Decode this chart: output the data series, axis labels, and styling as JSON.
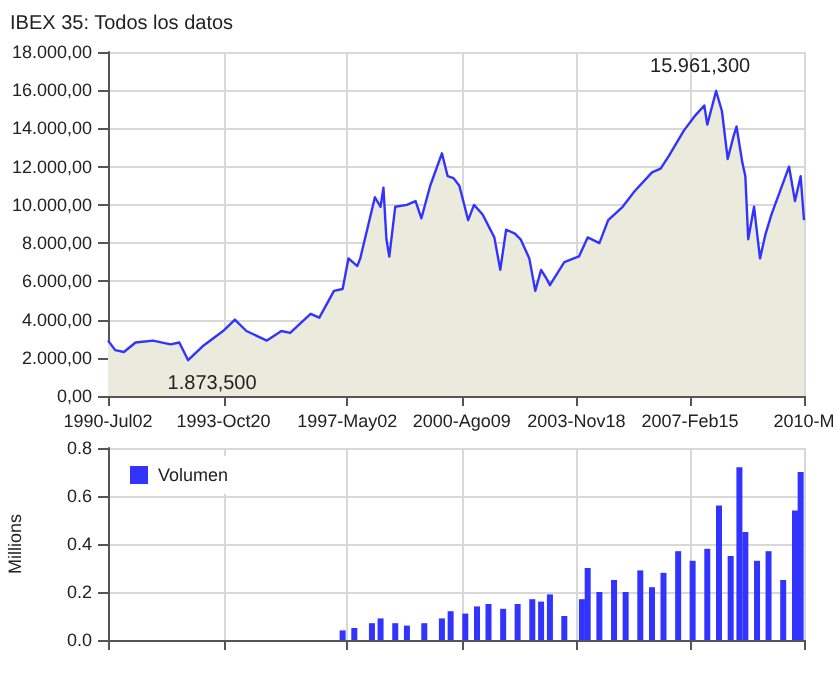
{
  "chart_data": [
    {
      "type": "area",
      "title": "IBEX 35: Todos los datos",
      "legend": false,
      "grid": true,
      "x": [
        "1990-07-02",
        "1990-09",
        "1990-12",
        "1991-04",
        "1991-10",
        "1992-04",
        "1992-07",
        "1992-10",
        "1993-03",
        "1993-10",
        "1994-02",
        "1994-06",
        "1995-01",
        "1995-06",
        "1995-09",
        "1996-04",
        "1996-07",
        "1996-12",
        "1997-03",
        "1997-05",
        "1997-08",
        "1997-09",
        "1998-02",
        "1998-04",
        "1998-05",
        "1998-06",
        "1998-07",
        "1998-09",
        "1999-01",
        "1999-04",
        "1999-06",
        "1999-09",
        "2000-01",
        "2000-03",
        "2000-05",
        "2000-07",
        "2000-10",
        "2000-12",
        "2001-03",
        "2001-07",
        "2001-09",
        "2001-11",
        "2002-02",
        "2002-04",
        "2002-07",
        "2002-09",
        "2002-11",
        "2003-01",
        "2003-02",
        "2003-07",
        "2003-12",
        "2004-03",
        "2004-07",
        "2004-10",
        "2005-03",
        "2005-07",
        "2006-01",
        "2006-04",
        "2006-07",
        "2006-12",
        "2007-04",
        "2007-07",
        "2007-08",
        "2007-11",
        "2008-01",
        "2008-03",
        "2008-05",
        "2008-06",
        "2008-08",
        "2008-09",
        "2008-10",
        "2008-12",
        "2009-02",
        "2009-04",
        "2009-06",
        "2009-12",
        "2010-02",
        "2010-04",
        "2010-05-20"
      ],
      "series": [
        {
          "color": "#3333ff",
          "values": [
            2900,
            2400,
            2300,
            2800,
            2900,
            2700,
            2800,
            1873.5,
            2600,
            3400,
            4000,
            3400,
            2900,
            3400,
            3300,
            4300,
            4100,
            5500,
            5600,
            7200,
            6800,
            7200,
            10400,
            9900,
            10900,
            8200,
            7300,
            9900,
            10000,
            10200,
            9300,
            11000,
            12700,
            11500,
            11400,
            11000,
            9200,
            10000,
            9500,
            8300,
            6600,
            8700,
            8500,
            8200,
            7200,
            5500,
            6600,
            6100,
            5800,
            7000,
            7300,
            8300,
            8000,
            9200,
            9900,
            10700,
            11700,
            11900,
            12600,
            13900,
            14700,
            15200,
            14200,
            15961.3,
            14900,
            12400,
            13600,
            14100,
            12200,
            11500,
            8200,
            9900,
            7200,
            8500,
            9500,
            12000,
            10200,
            11500,
            9200
          ]
        }
      ],
      "xlim": [
        "1990-07-02",
        "2010-05-20"
      ],
      "xticks": [
        {
          "value": "1990-07-02",
          "label": "1990-Jul02"
        },
        {
          "value": "1993-10-20",
          "label": "1993-Oct20"
        },
        {
          "value": "1997-05-02",
          "label": "1997-May02"
        },
        {
          "value": "2000-08-09",
          "label": "2000-Ago09"
        },
        {
          "value": "2003-11-18",
          "label": "2003-Nov18"
        },
        {
          "value": "2007-02-15",
          "label": "2007-Feb15"
        },
        {
          "value": "2010-05-20",
          "label": "2010-M"
        }
      ],
      "ylim": [
        0,
        18000
      ],
      "yticks": [
        {
          "value": 0,
          "label": "0,00"
        },
        {
          "value": 2000,
          "label": "2.000,00"
        },
        {
          "value": 4000,
          "label": "4.000,00"
        },
        {
          "value": 6000,
          "label": "6.000,00"
        },
        {
          "value": 8000,
          "label": "8.000,00"
        },
        {
          "value": 10000,
          "label": "10.000,00"
        },
        {
          "value": 12000,
          "label": "12.000,00"
        },
        {
          "value": 14000,
          "label": "14.000,00"
        },
        {
          "value": 16000,
          "label": "16.000,00"
        },
        {
          "value": 18000,
          "label": "18.000,00"
        }
      ],
      "annotations": [
        {
          "text": "1.873,500",
          "x": "1992-10",
          "y": 1873.5
        },
        {
          "text": "15.961,300",
          "x": "2007-11",
          "y": 15961.3
        }
      ]
    },
    {
      "type": "bar",
      "ylabel": "Millions",
      "legend": "top left",
      "grid": true,
      "tick_labels": "y",
      "x": [
        "1997-03",
        "1997-07",
        "1998-01",
        "1998-04",
        "1998-09",
        "1999-01",
        "1999-07",
        "2000-01",
        "2000-04",
        "2000-09",
        "2001-01",
        "2001-05",
        "2001-10",
        "2002-03",
        "2002-08",
        "2002-11",
        "2003-02",
        "2003-07",
        "2004-01",
        "2004-03",
        "2004-07",
        "2004-12",
        "2005-04",
        "2005-09",
        "2006-01",
        "2006-05",
        "2006-10",
        "2007-03",
        "2007-08",
        "2007-12",
        "2008-04",
        "2008-07",
        "2008-09",
        "2009-01",
        "2009-05",
        "2009-10",
        "2010-02",
        "2010-04"
      ],
      "series": [
        {
          "name": "Volumen",
          "color": "#3333ff",
          "values": [
            0.04,
            0.05,
            0.07,
            0.09,
            0.07,
            0.06,
            0.07,
            0.09,
            0.12,
            0.11,
            0.14,
            0.15,
            0.13,
            0.15,
            0.17,
            0.16,
            0.19,
            0.1,
            0.17,
            0.3,
            0.2,
            0.25,
            0.2,
            0.29,
            0.22,
            0.28,
            0.37,
            0.33,
            0.38,
            0.56,
            0.35,
            0.72,
            0.45,
            0.33,
            0.37,
            0.25,
            0.54,
            0.7
          ]
        }
      ],
      "xlim": [
        "1990-07-02",
        "2010-05-20"
      ],
      "xticks": [
        {
          "value": "1990-07-02",
          "label": null
        },
        {
          "value": "1993-10-20",
          "label": null
        },
        {
          "value": "1997-05-02",
          "label": null
        },
        {
          "value": "2000-08-09",
          "label": null
        },
        {
          "value": "2003-11-18",
          "label": null
        },
        {
          "value": "2007-02-15",
          "label": null
        },
        {
          "value": "2010-05-20",
          "label": null
        }
      ],
      "ylim": [
        0,
        0.8
      ],
      "yticks": [
        {
          "value": 0,
          "label": "0.0"
        },
        0.2,
        0.4,
        0.6,
        0.8
      ]
    }
  ]
}
